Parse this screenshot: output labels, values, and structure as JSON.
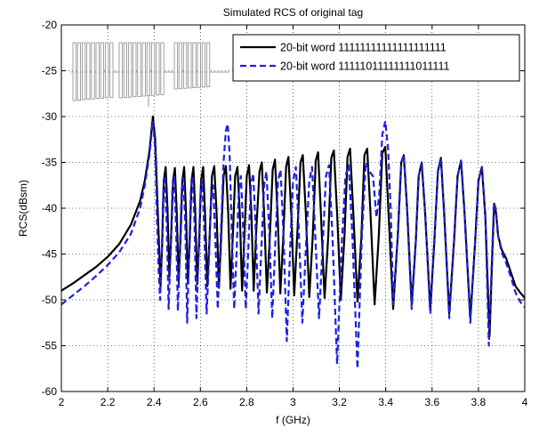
{
  "chart_data": {
    "type": "line",
    "title": "Simulated RCS of original tag",
    "xlabel": "f (GHz)",
    "ylabel": "RCS(dBsm)",
    "xlim": [
      2,
      4
    ],
    "ylim": [
      -60,
      -20
    ],
    "x_ticks": [
      "2",
      "2.2",
      "2.4",
      "2.6",
      "2.8",
      "3",
      "3.2",
      "3.4",
      "3.6",
      "3.8",
      "4"
    ],
    "y_ticks": [
      "-20",
      "-25",
      "-30",
      "-35",
      "-40",
      "-45",
      "-50",
      "-55",
      "-60"
    ],
    "grid": "dotted",
    "legend_position": "top-right",
    "inset": "tag geometry sketch: three groups of vertical resonator strips",
    "series": [
      {
        "name": "20-bit word 11111111111111111111",
        "color": "#000000",
        "style": "solid",
        "width": 2.2,
        "points": [
          [
            2.0,
            -49.0
          ],
          [
            2.05,
            -48.2
          ],
          [
            2.1,
            -47.3
          ],
          [
            2.15,
            -46.4
          ],
          [
            2.2,
            -45.3
          ],
          [
            2.25,
            -43.9
          ],
          [
            2.3,
            -41.8
          ],
          [
            2.34,
            -39.2
          ],
          [
            2.36,
            -37.0
          ],
          [
            2.38,
            -33.8
          ],
          [
            2.395,
            -30.0
          ],
          [
            2.405,
            -32.5
          ],
          [
            2.412,
            -37.5
          ],
          [
            2.42,
            -43.0
          ],
          [
            2.428,
            -48.5
          ],
          [
            2.435,
            -44.0
          ],
          [
            2.442,
            -37.0
          ],
          [
            2.45,
            -35.5
          ],
          [
            2.458,
            -40.0
          ],
          [
            2.466,
            -47.5
          ],
          [
            2.474,
            -43.0
          ],
          [
            2.482,
            -37.0
          ],
          [
            2.49,
            -35.6
          ],
          [
            2.498,
            -40.5
          ],
          [
            2.506,
            -48.0
          ],
          [
            2.514,
            -43.5
          ],
          [
            2.522,
            -37.0
          ],
          [
            2.53,
            -35.5
          ],
          [
            2.538,
            -40.5
          ],
          [
            2.546,
            -48.2
          ],
          [
            2.554,
            -43.5
          ],
          [
            2.562,
            -37.0
          ],
          [
            2.57,
            -35.5
          ],
          [
            2.578,
            -40.5
          ],
          [
            2.586,
            -48.3
          ],
          [
            2.595,
            -43.5
          ],
          [
            2.603,
            -37.0
          ],
          [
            2.612,
            -35.5
          ],
          [
            2.62,
            -40.5
          ],
          [
            2.63,
            -48.5
          ],
          [
            2.64,
            -43.0
          ],
          [
            2.65,
            -36.5
          ],
          [
            2.66,
            -35.4
          ],
          [
            2.67,
            -40.5
          ],
          [
            2.68,
            -48.7
          ],
          [
            2.69,
            -43.0
          ],
          [
            2.7,
            -36.5
          ],
          [
            2.71,
            -35.4
          ],
          [
            2.72,
            -40.5
          ],
          [
            2.73,
            -48.8
          ],
          [
            2.74,
            -43.0
          ],
          [
            2.75,
            -36.5
          ],
          [
            2.76,
            -35.5
          ],
          [
            2.77,
            -40.5
          ],
          [
            2.78,
            -49.0
          ],
          [
            2.79,
            -43.0
          ],
          [
            2.8,
            -36.5
          ],
          [
            2.81,
            -35.3
          ],
          [
            2.82,
            -40.5
          ],
          [
            2.83,
            -49.0
          ],
          [
            2.84,
            -43.0
          ],
          [
            2.855,
            -36.0
          ],
          [
            2.865,
            -35.0
          ],
          [
            2.875,
            -40.5
          ],
          [
            2.887,
            -49.2
          ],
          [
            2.9,
            -43.0
          ],
          [
            2.912,
            -35.8
          ],
          [
            2.922,
            -34.7
          ],
          [
            2.933,
            -40.5
          ],
          [
            2.945,
            -49.3
          ],
          [
            2.958,
            -43.0
          ],
          [
            2.97,
            -35.5
          ],
          [
            2.98,
            -34.4
          ],
          [
            2.992,
            -40.5
          ],
          [
            3.005,
            -49.5
          ],
          [
            3.018,
            -43.0
          ],
          [
            3.032,
            -35.0
          ],
          [
            3.042,
            -34.2
          ],
          [
            3.055,
            -40.5
          ],
          [
            3.07,
            -49.7
          ],
          [
            3.085,
            -43.0
          ],
          [
            3.098,
            -34.8
          ],
          [
            3.108,
            -33.9
          ],
          [
            3.12,
            -40.5
          ],
          [
            3.136,
            -49.8
          ],
          [
            3.152,
            -43.0
          ],
          [
            3.165,
            -34.5
          ],
          [
            3.176,
            -33.7
          ],
          [
            3.19,
            -40.5
          ],
          [
            3.206,
            -50.0
          ],
          [
            3.222,
            -43.0
          ],
          [
            3.235,
            -34.4
          ],
          [
            3.246,
            -33.5
          ],
          [
            3.26,
            -40.5
          ],
          [
            3.278,
            -50.2
          ],
          [
            3.295,
            -43.0
          ],
          [
            3.308,
            -34.2
          ],
          [
            3.32,
            -33.5
          ],
          [
            3.334,
            -40.5
          ],
          [
            3.352,
            -50.5
          ],
          [
            3.37,
            -43.0
          ],
          [
            3.385,
            -34.0
          ],
          [
            3.398,
            -33.3
          ],
          [
            3.412,
            -40.5
          ],
          [
            3.432,
            -51.0
          ],
          [
            3.452,
            -43.0
          ],
          [
            3.467,
            -35.0
          ],
          [
            3.478,
            -34.2
          ],
          [
            3.492,
            -40.0
          ],
          [
            3.512,
            -50.5
          ],
          [
            3.53,
            -43.5
          ],
          [
            3.542,
            -36.5
          ],
          [
            3.555,
            -35.0
          ],
          [
            3.57,
            -40.5
          ],
          [
            3.592,
            -51.0
          ],
          [
            3.61,
            -43.5
          ],
          [
            3.625,
            -36.0
          ],
          [
            3.638,
            -34.5
          ],
          [
            3.652,
            -40.5
          ],
          [
            3.674,
            -51.5
          ],
          [
            3.695,
            -43.5
          ],
          [
            3.71,
            -36.5
          ],
          [
            3.725,
            -34.8
          ],
          [
            3.74,
            -40.5
          ],
          [
            3.765,
            -52.0
          ],
          [
            3.785,
            -44.0
          ],
          [
            3.8,
            -37.0
          ],
          [
            3.815,
            -35.5
          ],
          [
            3.83,
            -41.0
          ],
          [
            3.848,
            -54.0
          ],
          [
            3.86,
            -45.0
          ],
          [
            3.868,
            -39.5
          ],
          [
            3.876,
            -40.5
          ],
          [
            3.885,
            -43.0
          ],
          [
            3.9,
            -44.5
          ],
          [
            3.92,
            -45.5
          ],
          [
            3.94,
            -47.0
          ],
          [
            3.96,
            -48.5
          ],
          [
            3.98,
            -49.2
          ],
          [
            4.0,
            -49.8
          ]
        ]
      },
      {
        "name": "20-bit word 11111011111111011111",
        "color": "#1f1fe6",
        "style": "dashed",
        "width": 2.2,
        "points": [
          [
            2.0,
            -50.5
          ],
          [
            2.05,
            -49.5
          ],
          [
            2.1,
            -48.5
          ],
          [
            2.15,
            -47.4
          ],
          [
            2.2,
            -46.2
          ],
          [
            2.25,
            -44.8
          ],
          [
            2.3,
            -42.8
          ],
          [
            2.34,
            -40.0
          ],
          [
            2.36,
            -37.5
          ],
          [
            2.38,
            -34.2
          ],
          [
            2.395,
            -30.5
          ],
          [
            2.405,
            -33.5
          ],
          [
            2.412,
            -40.5
          ],
          [
            2.42,
            -47.0
          ],
          [
            2.426,
            -50.0
          ],
          [
            2.433,
            -45.0
          ],
          [
            2.44,
            -38.0
          ],
          [
            2.447,
            -36.5
          ],
          [
            2.455,
            -42.0
          ],
          [
            2.463,
            -51.0
          ],
          [
            2.471,
            -45.0
          ],
          [
            2.479,
            -38.0
          ],
          [
            2.487,
            -36.6
          ],
          [
            2.495,
            -42.0
          ],
          [
            2.503,
            -51.2
          ],
          [
            2.511,
            -45.0
          ],
          [
            2.519,
            -38.0
          ],
          [
            2.527,
            -36.7
          ],
          [
            2.535,
            -42.0
          ],
          [
            2.543,
            -52.5
          ],
          [
            2.551,
            -45.0
          ],
          [
            2.559,
            -38.0
          ],
          [
            2.567,
            -36.6
          ],
          [
            2.575,
            -42.0
          ],
          [
            2.583,
            -52.0
          ],
          [
            2.592,
            -45.0
          ],
          [
            2.6,
            -38.5
          ],
          [
            2.608,
            -37.0
          ],
          [
            2.617,
            -42.5
          ],
          [
            2.627,
            -51.5
          ],
          [
            2.637,
            -45.5
          ],
          [
            2.646,
            -39.0
          ],
          [
            2.655,
            -37.5
          ],
          [
            2.664,
            -43.0
          ],
          [
            2.675,
            -51.0
          ],
          [
            2.688,
            -43.0
          ],
          [
            2.7,
            -35.0
          ],
          [
            2.71,
            -31.5
          ],
          [
            2.718,
            -30.8
          ],
          [
            2.726,
            -34.0
          ],
          [
            2.736,
            -43.0
          ],
          [
            2.746,
            -51.0
          ],
          [
            2.756,
            -45.0
          ],
          [
            2.766,
            -38.0
          ],
          [
            2.775,
            -36.5
          ],
          [
            2.785,
            -42.5
          ],
          [
            2.796,
            -51.0
          ],
          [
            2.807,
            -44.5
          ],
          [
            2.818,
            -37.5
          ],
          [
            2.828,
            -36.2
          ],
          [
            2.839,
            -42.5
          ],
          [
            2.851,
            -51.5
          ],
          [
            2.863,
            -44.5
          ],
          [
            2.875,
            -37.5
          ],
          [
            2.885,
            -36.0
          ],
          [
            2.897,
            -42.5
          ],
          [
            2.91,
            -52.0
          ],
          [
            2.923,
            -44.0
          ],
          [
            2.935,
            -37.0
          ],
          [
            2.946,
            -35.8
          ],
          [
            2.958,
            -42.5
          ],
          [
            2.973,
            -54.5
          ],
          [
            2.988,
            -44.0
          ],
          [
            3.0,
            -37.0
          ],
          [
            3.012,
            -35.5
          ],
          [
            3.025,
            -42.5
          ],
          [
            3.04,
            -52.5
          ],
          [
            3.056,
            -44.0
          ],
          [
            3.07,
            -37.0
          ],
          [
            3.082,
            -35.5
          ],
          [
            3.095,
            -42.5
          ],
          [
            3.112,
            -52.0
          ],
          [
            3.128,
            -44.0
          ],
          [
            3.142,
            -36.5
          ],
          [
            3.155,
            -35.3
          ],
          [
            3.17,
            -43.0
          ],
          [
            3.19,
            -57.0
          ],
          [
            3.21,
            -44.0
          ],
          [
            3.226,
            -36.5
          ],
          [
            3.24,
            -35.3
          ],
          [
            3.256,
            -43.0
          ],
          [
            3.278,
            -57.5
          ],
          [
            3.297,
            -43.0
          ],
          [
            3.314,
            -35.0
          ],
          [
            3.33,
            -36.0
          ],
          [
            3.345,
            -36.5
          ],
          [
            3.36,
            -41.0
          ],
          [
            3.372,
            -38.5
          ],
          [
            3.385,
            -32.0
          ],
          [
            3.398,
            -30.5
          ],
          [
            3.41,
            -33.5
          ],
          [
            3.422,
            -40.5
          ],
          [
            3.432,
            -50.5
          ],
          [
            3.452,
            -43.0
          ],
          [
            3.467,
            -35.0
          ],
          [
            3.478,
            -34.2
          ],
          [
            3.492,
            -40.0
          ],
          [
            3.512,
            -51.0
          ],
          [
            3.53,
            -43.5
          ],
          [
            3.542,
            -36.5
          ],
          [
            3.555,
            -35.0
          ],
          [
            3.57,
            -40.5
          ],
          [
            3.592,
            -51.5
          ],
          [
            3.61,
            -43.5
          ],
          [
            3.625,
            -36.0
          ],
          [
            3.638,
            -34.5
          ],
          [
            3.652,
            -40.5
          ],
          [
            3.674,
            -52.0
          ],
          [
            3.695,
            -43.5
          ],
          [
            3.71,
            -36.5
          ],
          [
            3.725,
            -34.8
          ],
          [
            3.74,
            -40.5
          ],
          [
            3.765,
            -52.5
          ],
          [
            3.785,
            -44.0
          ],
          [
            3.8,
            -37.0
          ],
          [
            3.815,
            -35.5
          ],
          [
            3.83,
            -41.0
          ],
          [
            3.845,
            -55.0
          ],
          [
            3.858,
            -45.5
          ],
          [
            3.867,
            -39.5
          ],
          [
            3.875,
            -40.0
          ],
          [
            3.885,
            -43.0
          ],
          [
            3.9,
            -44.8
          ],
          [
            3.92,
            -46.0
          ],
          [
            3.94,
            -47.5
          ],
          [
            3.96,
            -49.2
          ],
          [
            3.98,
            -50.2
          ],
          [
            4.0,
            -50.8
          ]
        ]
      }
    ]
  }
}
